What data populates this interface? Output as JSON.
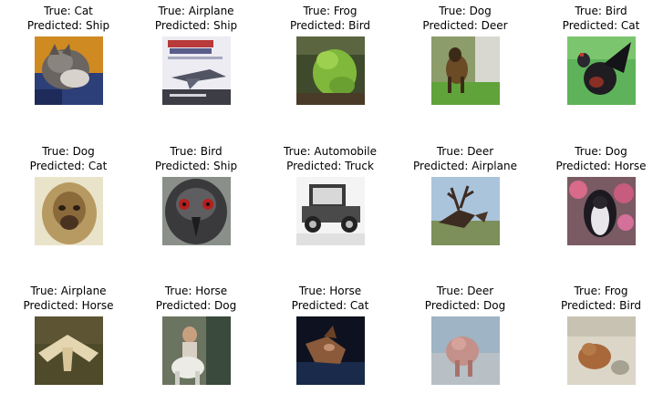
{
  "cells": [
    {
      "true_label": "True: Cat",
      "pred_label": "Predicted: Ship",
      "subject": "cat-image"
    },
    {
      "true_label": "True: Airplane",
      "pred_label": "Predicted: Ship",
      "subject": "airplane-image"
    },
    {
      "true_label": "True: Frog",
      "pred_label": "Predicted: Bird",
      "subject": "frog-image"
    },
    {
      "true_label": "True: Dog",
      "pred_label": "Predicted: Deer",
      "subject": "dog-image"
    },
    {
      "true_label": "True: Bird",
      "pred_label": "Predicted: Cat",
      "subject": "bird-image"
    },
    {
      "true_label": "True: Dog",
      "pred_label": "Predicted: Cat",
      "subject": "dog-image"
    },
    {
      "true_label": "True: Bird",
      "pred_label": "Predicted: Ship",
      "subject": "bird-image"
    },
    {
      "true_label": "True: Automobile",
      "pred_label": "Predicted: Truck",
      "subject": "automobile-image"
    },
    {
      "true_label": "True: Deer",
      "pred_label": "Predicted: Airplane",
      "subject": "deer-image"
    },
    {
      "true_label": "True: Dog",
      "pred_label": "Predicted: Horse",
      "subject": "dog-image"
    },
    {
      "true_label": "True: Airplane",
      "pred_label": "Predicted: Horse",
      "subject": "airplane-image"
    },
    {
      "true_label": "True: Horse",
      "pred_label": "Predicted: Dog",
      "subject": "horse-image"
    },
    {
      "true_label": "True: Horse",
      "pred_label": "Predicted: Cat",
      "subject": "horse-image"
    },
    {
      "true_label": "True: Deer",
      "pred_label": "Predicted: Dog",
      "subject": "deer-image"
    },
    {
      "true_label": "True: Frog",
      "pred_label": "Predicted: Bird",
      "subject": "frog-image"
    }
  ]
}
